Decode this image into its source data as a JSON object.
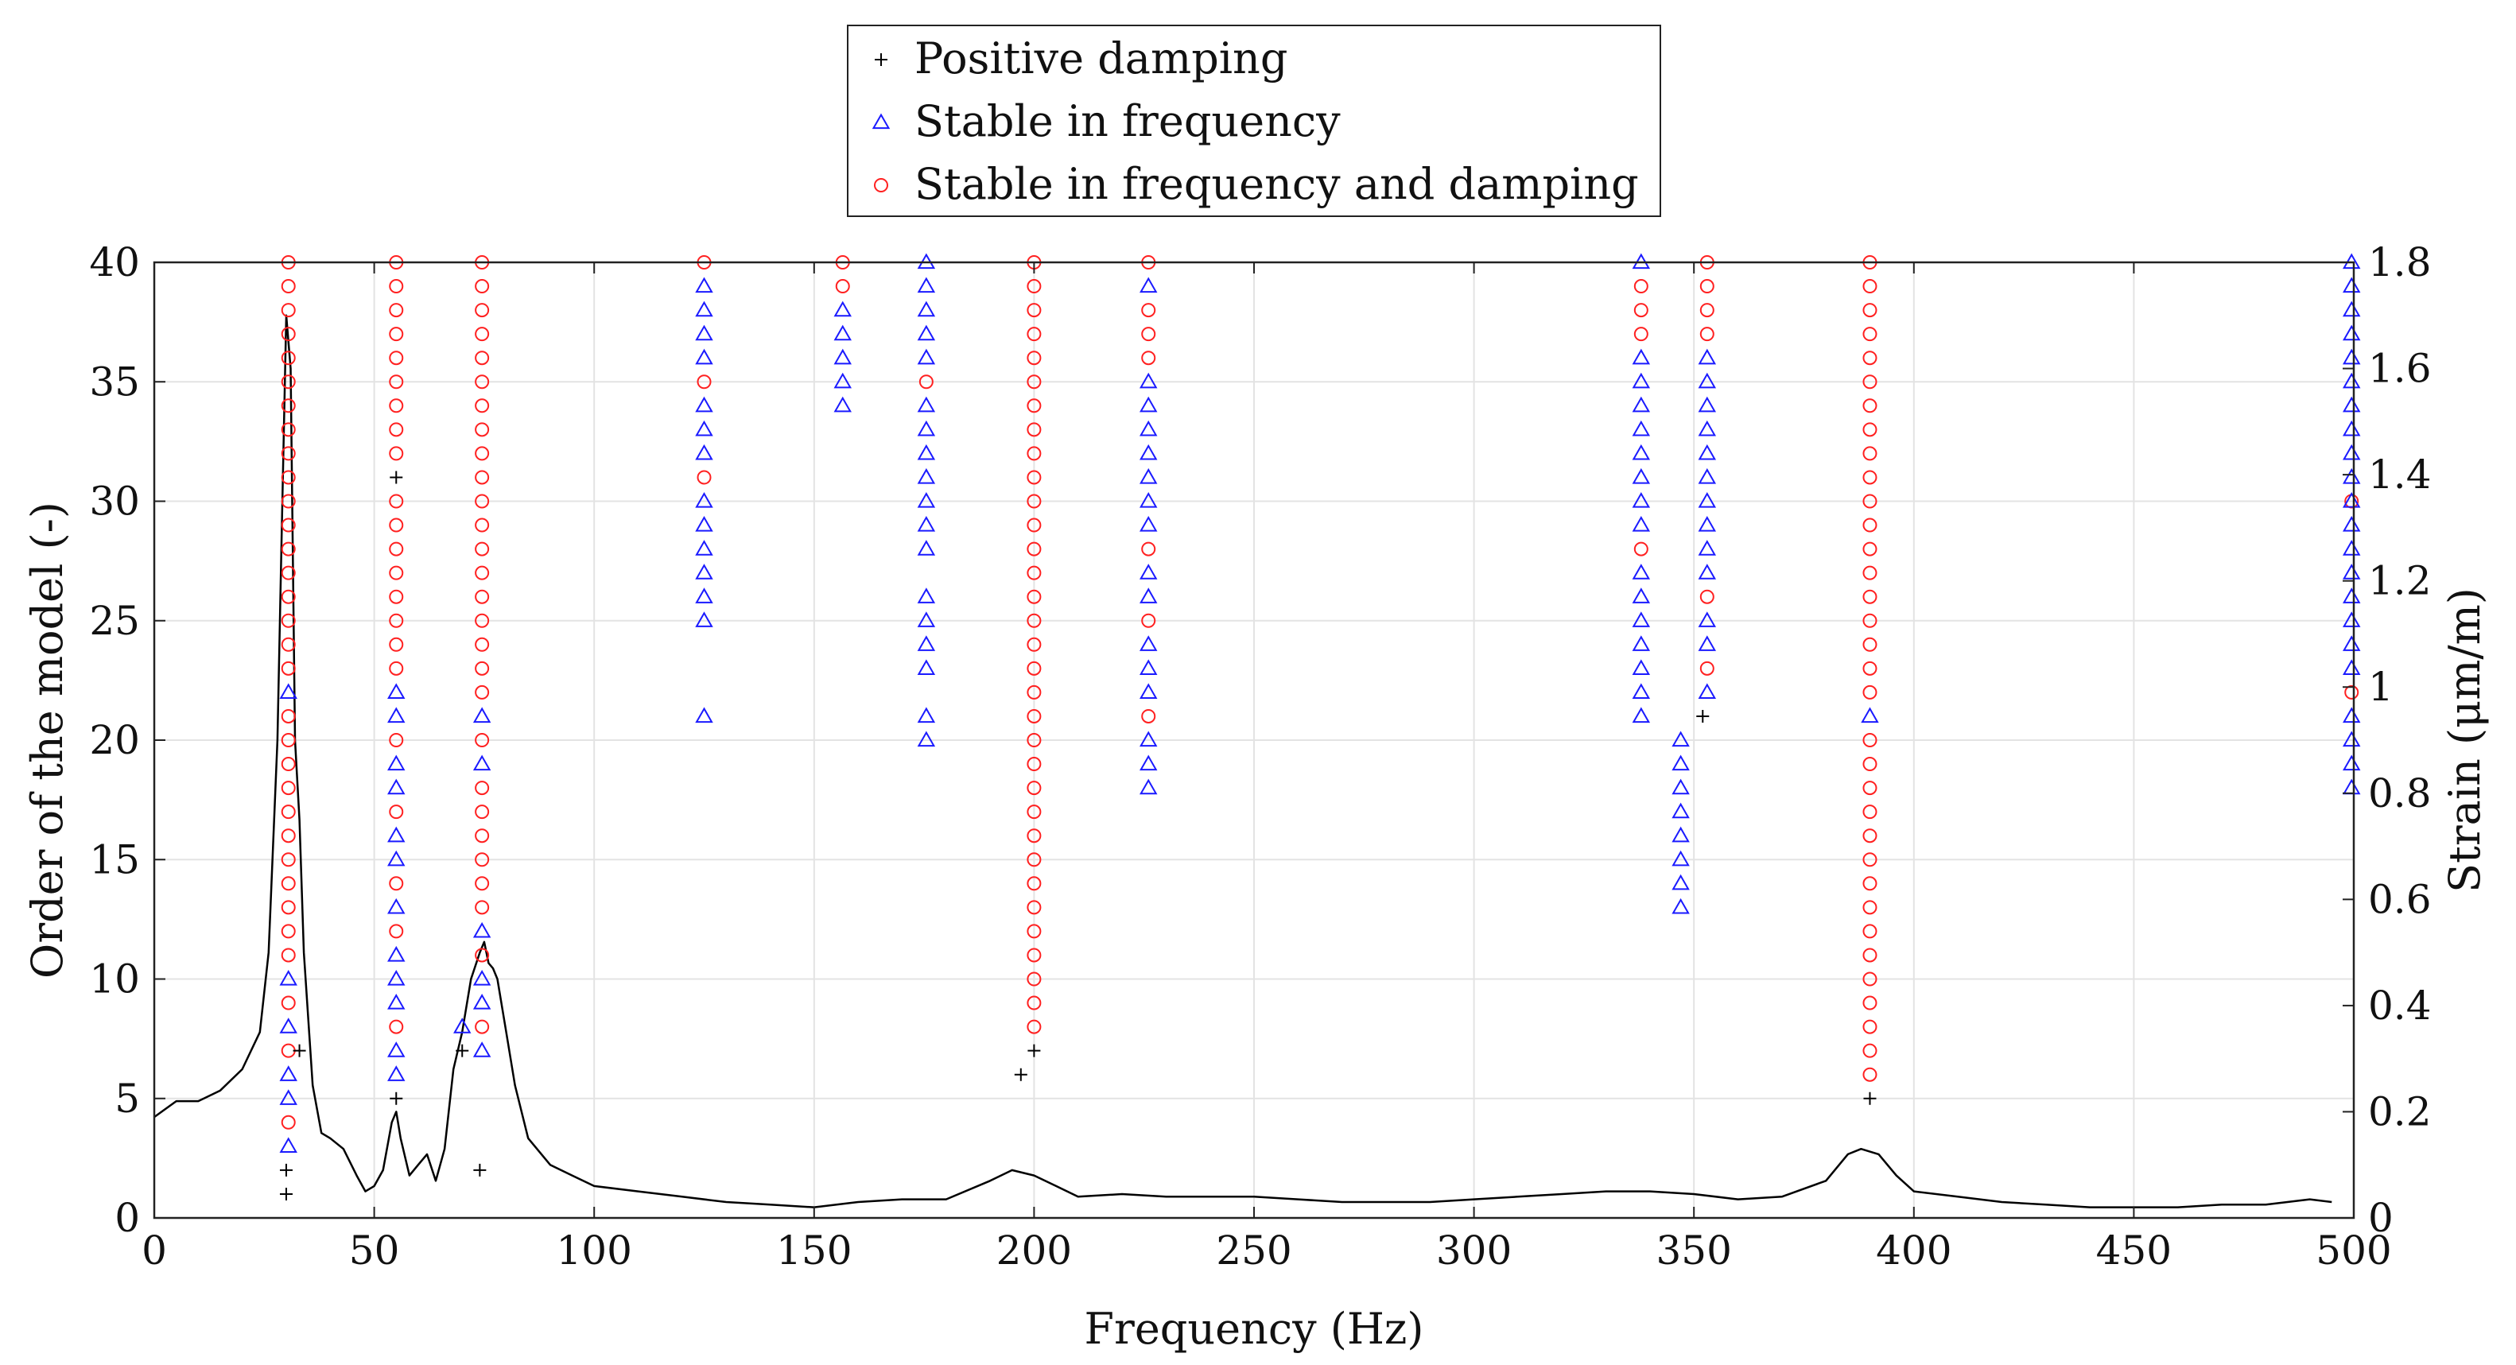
{
  "chart_data": {
    "type": "scatter",
    "title": "",
    "xlabel": "Frequency (Hz)",
    "ylabel_left": "Order of the model (-)",
    "ylabel_right": "Strain (μm/m)",
    "xlim": [
      0,
      500
    ],
    "ylim_left": [
      0,
      40
    ],
    "ylim_right": [
      0,
      1.8
    ],
    "x_ticks": [
      0,
      50,
      100,
      150,
      200,
      250,
      300,
      350,
      400,
      450,
      500
    ],
    "y_ticks_left": [
      0,
      5,
      10,
      15,
      20,
      25,
      30,
      35,
      40
    ],
    "y_ticks_right": [
      0,
      0.2,
      0.4,
      0.6,
      0.8,
      1,
      1.2,
      1.4,
      1.6,
      1.8
    ],
    "grid": true,
    "legend": {
      "position": "top-center",
      "entries": [
        {
          "label": "Positive damping",
          "marker": "plus",
          "color": "#000000"
        },
        {
          "label": "Stable in frequency",
          "marker": "triangle",
          "color": "#1a1aff"
        },
        {
          "label": "Stable in frequency and damping",
          "marker": "circle",
          "color": "#ff2020"
        }
      ]
    },
    "series": [
      {
        "name": "Positive damping",
        "marker": "plus",
        "color": "#000000",
        "points": [
          [
            30,
            1
          ],
          [
            30,
            2
          ],
          [
            33,
            7
          ],
          [
            55,
            5
          ],
          [
            55,
            31
          ],
          [
            70,
            7
          ],
          [
            74,
            2
          ],
          [
            197,
            6
          ],
          [
            200,
            7
          ],
          [
            352,
            21
          ],
          [
            390,
            5
          ]
        ]
      },
      {
        "name": "Stable in frequency",
        "marker": "triangle",
        "color": "#1a1aff",
        "columns": [
          {
            "x": 30.5,
            "orders": [
              3,
              5,
              6,
              8,
              10,
              22
            ]
          },
          {
            "x": 55,
            "orders": [
              6,
              7,
              9,
              10,
              11,
              13,
              15,
              16,
              18,
              19,
              21,
              22
            ]
          },
          {
            "x": 70,
            "orders": [
              8
            ]
          },
          {
            "x": 74.5,
            "orders": [
              7,
              9,
              10,
              12,
              19,
              21
            ]
          },
          {
            "x": 125,
            "orders": [
              21,
              25,
              26,
              27,
              28,
              29,
              30,
              32,
              33,
              34,
              36,
              37,
              38,
              39
            ]
          },
          {
            "x": 156.5,
            "orders": [
              34,
              35,
              36,
              37,
              38
            ]
          },
          {
            "x": 175.5,
            "orders": [
              20,
              21,
              23,
              24,
              25,
              26,
              28,
              29,
              30,
              31,
              32,
              33,
              34,
              36,
              37,
              38,
              39,
              40
            ]
          },
          {
            "x": 226,
            "orders": [
              18,
              19,
              20,
              22,
              23,
              24,
              26,
              27,
              29,
              30,
              31,
              32,
              33,
              34,
              35,
              39
            ]
          },
          {
            "x": 338,
            "orders": [
              21,
              22,
              23,
              24,
              25,
              26,
              27,
              29,
              30,
              31,
              32,
              33,
              34,
              35,
              36,
              40
            ]
          },
          {
            "x": 347,
            "orders": [
              13,
              14,
              15,
              16,
              17,
              18,
              19,
              20
            ]
          },
          {
            "x": 353,
            "orders": [
              22,
              24,
              25,
              27,
              28,
              29,
              30,
              31,
              32,
              33,
              34,
              35,
              36
            ]
          },
          {
            "x": 390,
            "orders": [
              21
            ]
          },
          {
            "x": 499.5,
            "orders": [
              18,
              19,
              20,
              21,
              23,
              24,
              25,
              26,
              27,
              28,
              29,
              30,
              31,
              32,
              33,
              34,
              35,
              36,
              37,
              38,
              39,
              40
            ]
          }
        ]
      },
      {
        "name": "Stable in frequency and damping",
        "marker": "circle",
        "color": "#ff2020",
        "columns": [
          {
            "x": 30.5,
            "orders": [
              4,
              7,
              9,
              11,
              12,
              13,
              14,
              15,
              16,
              17,
              18,
              19,
              20,
              21,
              23,
              24,
              25,
              26,
              27,
              28,
              29,
              30,
              31,
              32,
              33,
              34,
              35,
              36,
              37,
              38,
              39,
              40
            ]
          },
          {
            "x": 55,
            "orders": [
              8,
              12,
              14,
              17,
              20,
              23,
              24,
              25,
              26,
              27,
              28,
              29,
              30,
              32,
              33,
              34,
              35,
              36,
              37,
              38,
              39,
              40
            ]
          },
          {
            "x": 74.5,
            "orders": [
              8,
              11,
              13,
              14,
              15,
              16,
              17,
              18,
              20,
              22,
              23,
              24,
              25,
              26,
              27,
              28,
              29,
              30,
              31,
              32,
              33,
              34,
              35,
              36,
              37,
              38,
              39,
              40
            ]
          },
          {
            "x": 125,
            "orders": [
              31,
              35,
              40
            ]
          },
          {
            "x": 156.5,
            "orders": [
              39,
              40
            ]
          },
          {
            "x": 175.5,
            "orders": [
              35
            ]
          },
          {
            "x": 200,
            "orders": [
              8,
              9,
              10,
              11,
              12,
              13,
              14,
              15,
              16,
              17,
              18,
              19,
              20,
              21,
              22,
              23,
              24,
              25,
              26,
              27,
              28,
              29,
              30,
              31,
              32,
              33,
              34,
              35,
              36,
              37,
              38,
              39,
              40
            ]
          },
          {
            "x": 226,
            "orders": [
              21,
              25,
              28,
              36,
              37,
              38,
              40
            ]
          },
          {
            "x": 338,
            "orders": [
              28,
              37,
              38,
              39
            ]
          },
          {
            "x": 353,
            "orders": [
              23,
              26,
              37,
              38,
              39,
              40
            ]
          },
          {
            "x": 390,
            "orders": [
              6,
              7,
              8,
              9,
              10,
              11,
              12,
              13,
              14,
              15,
              16,
              17,
              18,
              19,
              20,
              22,
              23,
              24,
              25,
              26,
              27,
              28,
              29,
              30,
              31,
              32,
              33,
              34,
              35,
              36,
              37,
              38,
              39,
              40
            ]
          },
          {
            "x": 499.5,
            "orders": [
              22,
              30
            ]
          }
        ]
      },
      {
        "name": "Strain spectrum",
        "type": "line",
        "axis": "right",
        "color": "#000000",
        "x": [
          0,
          5,
          10,
          15,
          20,
          24,
          26,
          28,
          29,
          30,
          31,
          32,
          33,
          34,
          36,
          38,
          40,
          43,
          46,
          48,
          50,
          52,
          54,
          55,
          56,
          58,
          60,
          62,
          64,
          66,
          68,
          70,
          72,
          74,
          75,
          76,
          77,
          78,
          80,
          82,
          85,
          90,
          95,
          100,
          110,
          120,
          130,
          140,
          150,
          160,
          170,
          180,
          190,
          195,
          200,
          205,
          210,
          220,
          230,
          240,
          250,
          260,
          270,
          280,
          290,
          300,
          310,
          320,
          330,
          340,
          350,
          360,
          370,
          380,
          385,
          388,
          392,
          396,
          400,
          410,
          420,
          430,
          440,
          450,
          460,
          470,
          480,
          490,
          495
        ],
        "values": [
          0.19,
          0.22,
          0.22,
          0.24,
          0.28,
          0.35,
          0.5,
          0.9,
          1.3,
          1.7,
          1.6,
          0.9,
          0.75,
          0.5,
          0.25,
          0.16,
          0.15,
          0.13,
          0.08,
          0.05,
          0.06,
          0.09,
          0.18,
          0.2,
          0.15,
          0.08,
          0.1,
          0.12,
          0.07,
          0.13,
          0.28,
          0.35,
          0.45,
          0.5,
          0.52,
          0.48,
          0.47,
          0.45,
          0.35,
          0.25,
          0.15,
          0.1,
          0.08,
          0.06,
          0.05,
          0.04,
          0.03,
          0.025,
          0.02,
          0.03,
          0.035,
          0.035,
          0.07,
          0.09,
          0.08,
          0.06,
          0.04,
          0.045,
          0.04,
          0.04,
          0.04,
          0.035,
          0.03,
          0.03,
          0.03,
          0.035,
          0.04,
          0.045,
          0.05,
          0.05,
          0.045,
          0.035,
          0.04,
          0.07,
          0.12,
          0.13,
          0.12,
          0.08,
          0.05,
          0.04,
          0.03,
          0.025,
          0.02,
          0.02,
          0.02,
          0.025,
          0.025,
          0.035,
          0.03
        ]
      }
    ]
  }
}
